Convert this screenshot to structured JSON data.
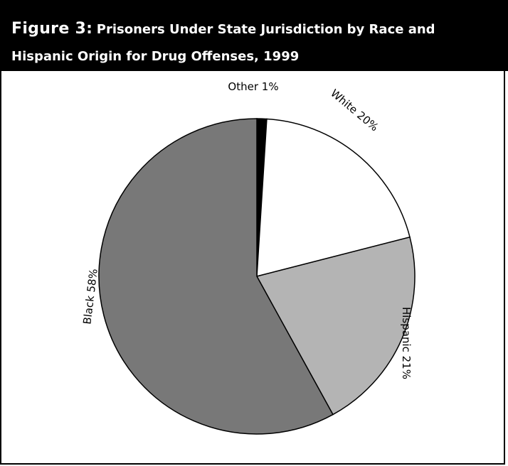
{
  "chart_data": {
    "type": "pie",
    "figure_label": "Figure 3:",
    "title": "Prisoners Under State Jurisdiction by Race and Hispanic Origin for Drug Offenses, 1999",
    "start": "top, clockwise",
    "slices": [
      {
        "label": "Other 1%",
        "value": 1,
        "color": "#000000"
      },
      {
        "label": "White 20%",
        "value": 20,
        "color": "#ffffff"
      },
      {
        "label": "Hispanic 21%",
        "value": 21,
        "color": "#b4b4b4"
      },
      {
        "label": "Black 58%",
        "value": 58,
        "color": "#787878"
      }
    ]
  }
}
